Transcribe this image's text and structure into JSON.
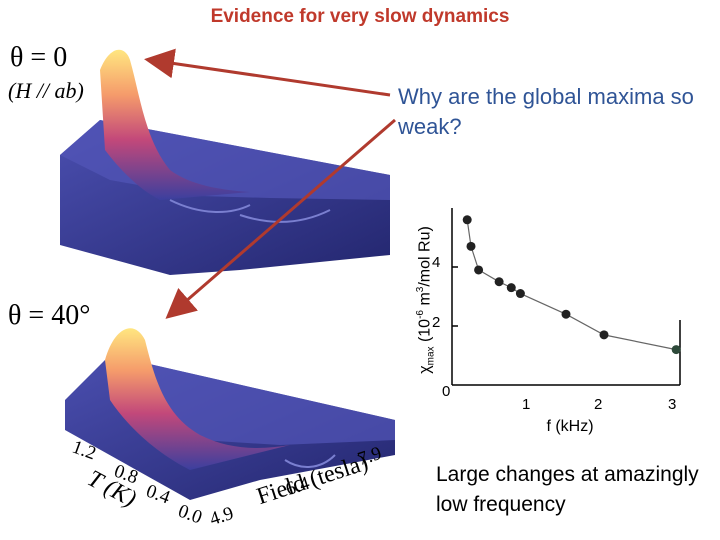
{
  "title": "Evidence for very slow dynamics",
  "theta_top": "θ = 0",
  "orientation": "(H // ab)",
  "theta_bottom": "θ = 40°",
  "question": "Why are the global maxima so weak?",
  "bottom_note": "Large changes at amazingly low frequency",
  "surface_axes": {
    "t_label": "T (K)",
    "t_ticks": [
      "1.2",
      "0.8",
      "0.4",
      "0.0"
    ],
    "field_label": "Field (tesla)",
    "field_ticks": [
      "4.9",
      "6.4",
      "7.9"
    ]
  },
  "colors": {
    "title": "#c0392b",
    "text_blue": "#2f5496",
    "surface_base": "#3b3f9e",
    "surface_peak": "#ffe680"
  },
  "chart_data": {
    "type": "scatter",
    "xlabel": "f (kHz)",
    "ylabel": "χmax (10-6 m3/mol Ru)",
    "x_ticks": [
      "0",
      "1",
      "2",
      "3"
    ],
    "y_ticks": [
      "2",
      "4"
    ],
    "xlim": [
      0,
      3
    ],
    "ylim": [
      0,
      6
    ],
    "points": [
      {
        "x": 0.2,
        "y": 5.6
      },
      {
        "x": 0.25,
        "y": 4.7
      },
      {
        "x": 0.35,
        "y": 3.9
      },
      {
        "x": 0.62,
        "y": 3.5
      },
      {
        "x": 0.78,
        "y": 3.3
      },
      {
        "x": 0.9,
        "y": 3.1
      },
      {
        "x": 1.5,
        "y": 2.4
      },
      {
        "x": 2.0,
        "y": 1.7
      },
      {
        "x": 2.95,
        "y": 1.2
      }
    ]
  }
}
